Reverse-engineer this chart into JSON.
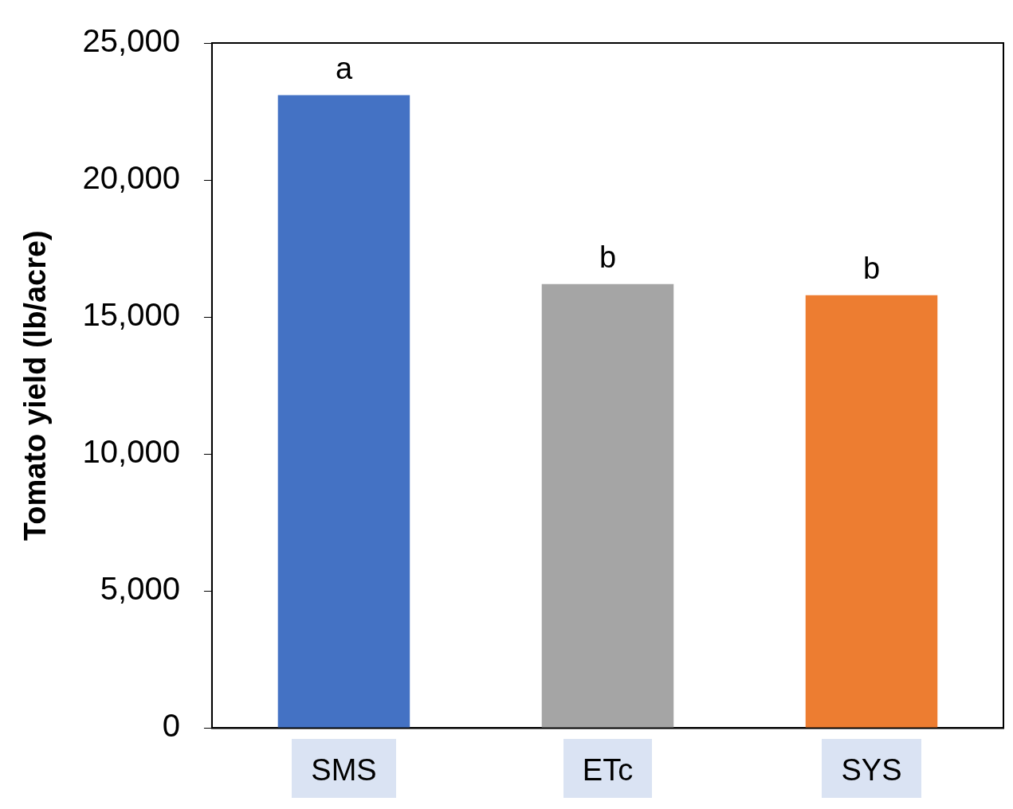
{
  "chart_data": {
    "type": "bar",
    "ylabel": "Tomato yield (lb/acre)",
    "categories": [
      "SMS",
      "ETc",
      "SYS"
    ],
    "values": [
      23100,
      16200,
      15800
    ],
    "colors": [
      "#4472c4",
      "#a5a5a5",
      "#ed7d31"
    ],
    "ylim": [
      0,
      25000
    ],
    "yticks": [
      {
        "value": 0,
        "label": "0"
      },
      {
        "value": 5000,
        "label": "5,000"
      },
      {
        "value": 10000,
        "label": "10,000"
      },
      {
        "value": 15000,
        "label": "15,000"
      },
      {
        "value": 20000,
        "label": "20,000"
      },
      {
        "value": 25000,
        "label": "25,000"
      }
    ],
    "grid": false,
    "legend": false,
    "annotations": [
      {
        "text": "a",
        "x": "SMS",
        "y": 23100
      },
      {
        "text": "b",
        "x": "ETc",
        "y": 16200
      },
      {
        "text": "b",
        "x": "SYS",
        "y": 15800
      }
    ]
  }
}
